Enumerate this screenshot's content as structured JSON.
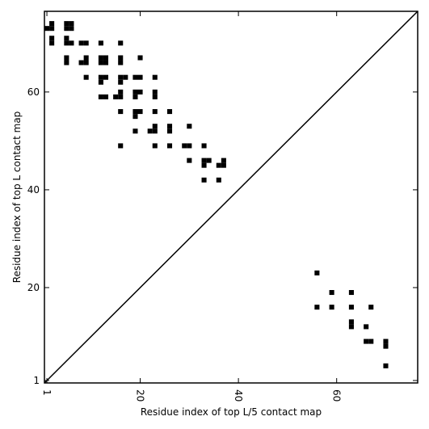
{
  "chart_data": {
    "type": "heatmap",
    "xlabel": "Residue index of top L/5 contact map",
    "ylabel": "Residue index of top L contact map",
    "xlim": [
      0.5,
      76.5
    ],
    "ylim": [
      0.5,
      76.5
    ],
    "x_ticks": [
      {
        "value": 1,
        "label": "1"
      },
      {
        "value": 20,
        "label": "20"
      },
      {
        "value": 40,
        "label": "40"
      },
      {
        "value": 60,
        "label": "60"
      }
    ],
    "y_ticks": [
      {
        "value": 1,
        "label": "1"
      },
      {
        "value": 20,
        "label": "20"
      },
      {
        "value": 40,
        "label": "40"
      },
      {
        "value": 60,
        "label": "60"
      }
    ],
    "diagonal": true,
    "grid": false,
    "colors": {
      "contact": "#000000",
      "background": "#ffffff",
      "axes": "#000000"
    },
    "upper_contacts": [
      [
        1,
        73
      ],
      [
        2,
        73
      ],
      [
        2,
        74
      ],
      [
        2,
        71
      ],
      [
        2,
        70
      ],
      [
        5,
        74
      ],
      [
        5,
        73
      ],
      [
        6,
        74
      ],
      [
        6,
        73
      ],
      [
        5,
        71
      ],
      [
        5,
        70
      ],
      [
        6,
        70
      ],
      [
        5,
        67
      ],
      [
        5,
        66
      ],
      [
        8,
        70
      ],
      [
        9,
        70
      ],
      [
        8,
        66
      ],
      [
        9,
        66
      ],
      [
        9,
        67
      ],
      [
        9,
        63
      ],
      [
        12,
        70
      ],
      [
        12,
        67
      ],
      [
        12,
        66
      ],
      [
        13,
        67
      ],
      [
        13,
        66
      ],
      [
        12,
        63
      ],
      [
        13,
        63
      ],
      [
        12,
        62
      ],
      [
        12,
        59
      ],
      [
        13,
        59
      ],
      [
        16,
        70
      ],
      [
        16,
        67
      ],
      [
        16,
        66
      ],
      [
        16,
        63
      ],
      [
        17,
        63
      ],
      [
        16,
        62
      ],
      [
        15,
        59
      ],
      [
        16,
        59
      ],
      [
        16,
        60
      ],
      [
        16,
        56
      ],
      [
        16,
        49
      ],
      [
        19,
        63
      ],
      [
        20,
        63
      ],
      [
        20,
        67
      ],
      [
        19,
        60
      ],
      [
        20,
        60
      ],
      [
        19,
        59
      ],
      [
        19,
        56
      ],
      [
        20,
        56
      ],
      [
        19,
        55
      ],
      [
        19,
        52
      ],
      [
        22,
        52
      ],
      [
        23,
        52
      ],
      [
        23,
        53
      ],
      [
        23,
        63
      ],
      [
        23,
        60
      ],
      [
        23,
        59
      ],
      [
        23,
        56
      ],
      [
        23,
        49
      ],
      [
        26,
        56
      ],
      [
        26,
        53
      ],
      [
        26,
        52
      ],
      [
        26,
        49
      ],
      [
        29,
        49
      ],
      [
        30,
        49
      ],
      [
        30,
        53
      ],
      [
        30,
        46
      ],
      [
        33,
        49
      ],
      [
        33,
        46
      ],
      [
        33,
        45
      ],
      [
        34,
        46
      ],
      [
        33,
        42
      ],
      [
        36,
        45
      ],
      [
        37,
        45
      ],
      [
        37,
        46
      ],
      [
        36,
        42
      ]
    ],
    "lower_contacts": [
      [
        56,
        23
      ],
      [
        56,
        16
      ],
      [
        59,
        19
      ],
      [
        59,
        16
      ],
      [
        63,
        19
      ],
      [
        63,
        16
      ],
      [
        63,
        13
      ],
      [
        63,
        12
      ],
      [
        67,
        16
      ],
      [
        66,
        12
      ],
      [
        66,
        9
      ],
      [
        67,
        9
      ],
      [
        70,
        9
      ],
      [
        70,
        8
      ],
      [
        70,
        4
      ]
    ]
  }
}
